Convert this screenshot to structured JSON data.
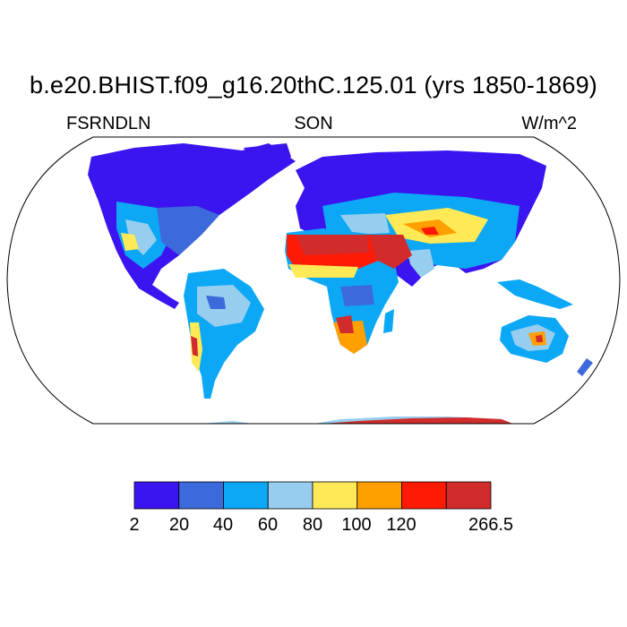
{
  "title": "b.e20.BHIST.f09_g16.20thC.125.01 (yrs 1850-1869)",
  "left_label": "FSRNDLN",
  "center_label": "SON",
  "right_label": "W/m^2",
  "colorbar": {
    "colors": [
      "#3c14f0",
      "#3d6adb",
      "#0ca8f5",
      "#97cdee",
      "#ffe957",
      "#ff9f00",
      "#ff1a05",
      "#d12b2b"
    ],
    "labels": [
      "2",
      "20",
      "40",
      "60",
      "80",
      "100",
      "120",
      "266.5"
    ]
  },
  "map": {
    "projection": "robinson",
    "ocean_color": "#ffffff",
    "coastline_color": "#000000"
  }
}
